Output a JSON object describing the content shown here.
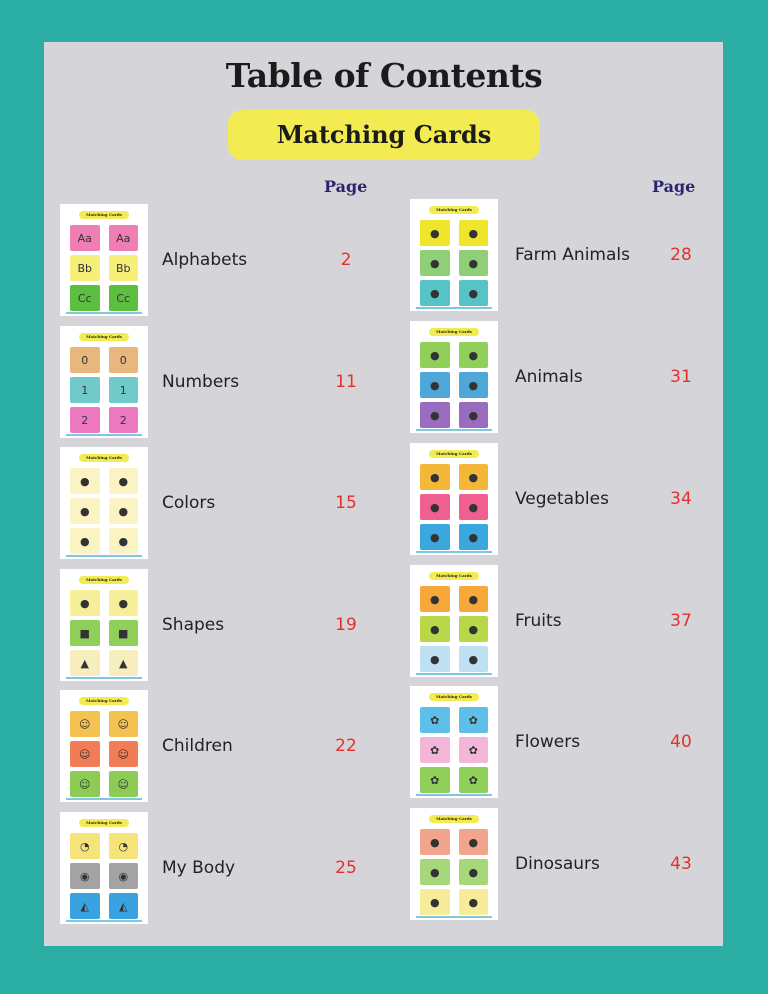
{
  "title": "Table of Contents",
  "subtitle": "Matching Cards",
  "page_header": "Page",
  "colors": {
    "background": "#2aaea3",
    "panel": "#d5d5d9",
    "pill": "#f2ec52",
    "page_number": "#e3302d",
    "page_header": "#2a2470"
  },
  "thumbnail_heading": "Matching Cards",
  "left": [
    {
      "label": "Alphabets",
      "page": "2",
      "cards": [
        "#ef7fb3",
        "#f6ef7a",
        "#5cbf3f"
      ],
      "glyphs": [
        "Aa",
        "Bb",
        "Cc"
      ]
    },
    {
      "label": "Numbers",
      "page": "11",
      "cards": [
        "#e8b77d",
        "#6fcac9",
        "#ec79c0"
      ],
      "glyphs": [
        "0",
        "1",
        "2"
      ]
    },
    {
      "label": "Colors",
      "page": "15",
      "cards": [
        "#fbf3c4",
        "#fbf3c4",
        "#fbf3c4"
      ],
      "glyphs": [
        "●",
        "●",
        "●"
      ]
    },
    {
      "label": "Shapes",
      "page": "19",
      "cards": [
        "#f7ee9a",
        "#8fcf5a",
        "#f7eebe"
      ],
      "glyphs": [
        "●",
        "■",
        "▲"
      ]
    },
    {
      "label": "Children",
      "page": "22",
      "cards": [
        "#f4c251",
        "#f27c55",
        "#8ccc54"
      ],
      "glyphs": [
        "☺",
        "☺",
        "☺"
      ]
    },
    {
      "label": "My Body",
      "page": "25",
      "cards": [
        "#f4e47a",
        "#a3a3a3",
        "#3aa3df"
      ],
      "glyphs": [
        "◔",
        "◉",
        "◭"
      ]
    }
  ],
  "right": [
    {
      "label": "Farm Animals",
      "page": "28",
      "cards": [
        "#efe52b",
        "#8fcf77",
        "#57c3c7"
      ],
      "glyphs": [
        "●",
        "●",
        "●"
      ]
    },
    {
      "label": "Animals",
      "page": "31",
      "cards": [
        "#8fcf5a",
        "#4ea7d8",
        "#9a6cc0"
      ],
      "glyphs": [
        "●",
        "●",
        "●"
      ]
    },
    {
      "label": "Vegetables",
      "page": "34",
      "cards": [
        "#f4b73a",
        "#ef5f8f",
        "#3aa7df"
      ],
      "glyphs": [
        "●",
        "●",
        "●"
      ]
    },
    {
      "label": "Fruits",
      "page": "37",
      "cards": [
        "#f6a83a",
        "#b8d84a",
        "#bfe0f2"
      ],
      "glyphs": [
        "●",
        "●",
        "●"
      ]
    },
    {
      "label": "Flowers",
      "page": "40",
      "cards": [
        "#5ec0ea",
        "#f3b6d9",
        "#8fcf5a"
      ],
      "glyphs": [
        "✿",
        "✿",
        "✿"
      ]
    },
    {
      "label": "Dinosaurs",
      "page": "43",
      "cards": [
        "#f2a58c",
        "#a6d87a",
        "#f7ec9a"
      ],
      "glyphs": [
        "●",
        "●",
        "●"
      ]
    }
  ]
}
